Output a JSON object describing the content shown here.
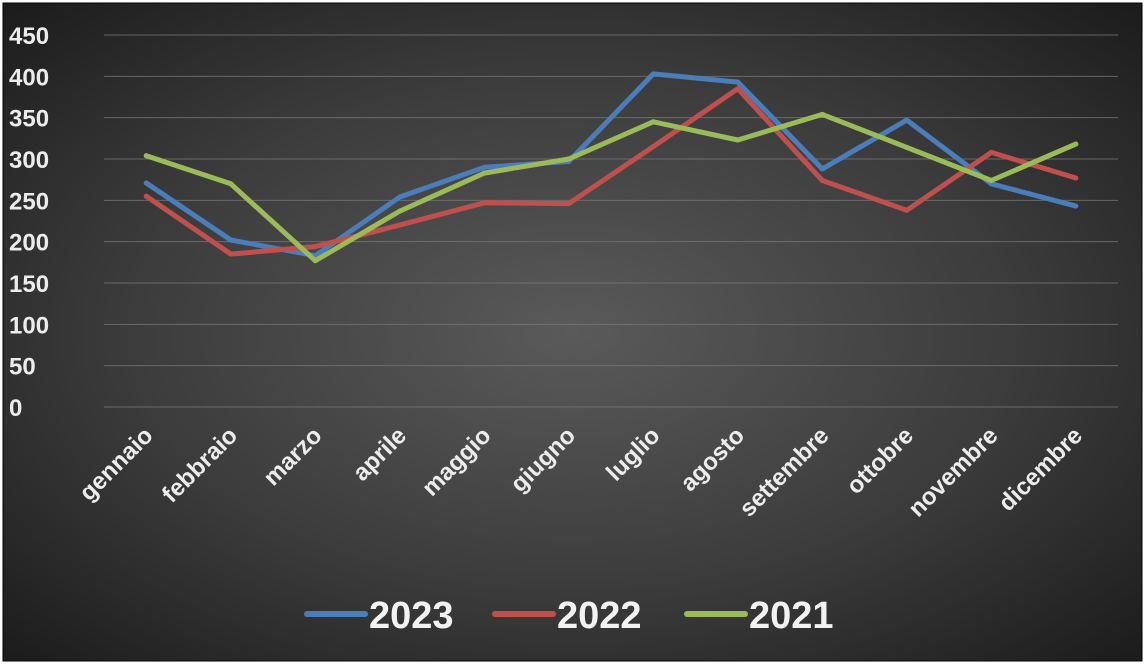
{
  "chart_data": {
    "type": "line",
    "title": "",
    "xlabel": "",
    "ylabel": "",
    "ylim": [
      0,
      450
    ],
    "yticks": [
      0,
      50,
      100,
      150,
      200,
      250,
      300,
      350,
      400,
      450
    ],
    "grid": true,
    "legend_position": "bottom",
    "categories": [
      "gennaio",
      "febbraio",
      "marzo",
      "aprile",
      "maggio",
      "giugno",
      "luglio",
      "agosto",
      "settembre",
      "ottobre",
      "novembre",
      "dicembre"
    ],
    "series": [
      {
        "name": "2023",
        "color": "#4a7ebb",
        "values": [
          271,
          202,
          183,
          254,
          290,
          297,
          403,
          393,
          288,
          347,
          270,
          243
        ]
      },
      {
        "name": "2022",
        "color": "#c0504d",
        "values": [
          255,
          185,
          194,
          220,
          247,
          246,
          315,
          385,
          274,
          238,
          308,
          277
        ]
      },
      {
        "name": "2021",
        "color": "#9bbb59",
        "values": [
          304,
          270,
          177,
          237,
          283,
          300,
          345,
          323,
          354,
          314,
          274,
          318
        ]
      }
    ]
  }
}
